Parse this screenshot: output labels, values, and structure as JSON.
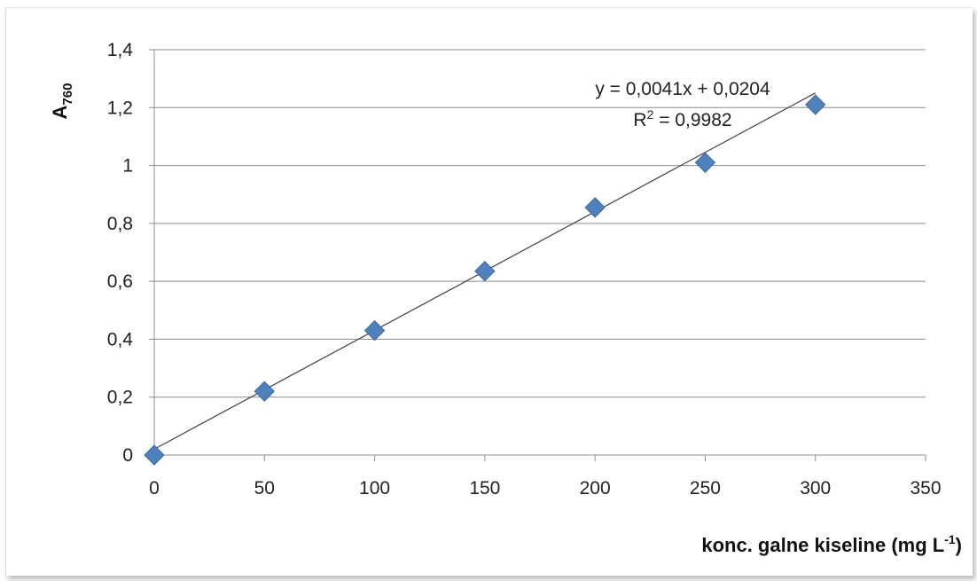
{
  "chart_data": {
    "type": "scatter",
    "title": "",
    "xlabel": "konc. galne kiseline (mg L",
    "xlabel_sup": "-1",
    "xlabel_end": ")",
    "ylabel_main": "A",
    "ylabel_sub": "760",
    "xlim": [
      0,
      350
    ],
    "ylim": [
      0,
      1.4
    ],
    "x_ticks": [
      0,
      50,
      100,
      150,
      200,
      250,
      300,
      350
    ],
    "x_tick_labels": [
      "0",
      "50",
      "100",
      "150",
      "200",
      "250",
      "300",
      "350"
    ],
    "y_ticks": [
      0,
      0.2,
      0.4,
      0.6,
      0.8,
      1,
      1.2,
      1.4
    ],
    "y_tick_labels": [
      "0",
      "0,2",
      "0,4",
      "0,6",
      "0,8",
      "1",
      "1,2",
      "1,4"
    ],
    "grid": "horizontal",
    "series": [
      {
        "x": [
          0,
          50,
          100,
          150,
          200,
          250,
          300
        ],
        "y": [
          0.0,
          0.22,
          0.43,
          0.635,
          0.855,
          1.01,
          1.21
        ],
        "marker": "diamond",
        "color": "#4F81BD"
      }
    ],
    "trendline": {
      "slope": 0.0041,
      "intercept": 0.0204,
      "x_range": [
        0,
        300
      ],
      "color": "#404040"
    },
    "annotations": {
      "equation": "y = 0,0041x + 0,0204",
      "r2_main": "R",
      "r2_sup": "2",
      "r2_value": " = 0,9982"
    }
  }
}
